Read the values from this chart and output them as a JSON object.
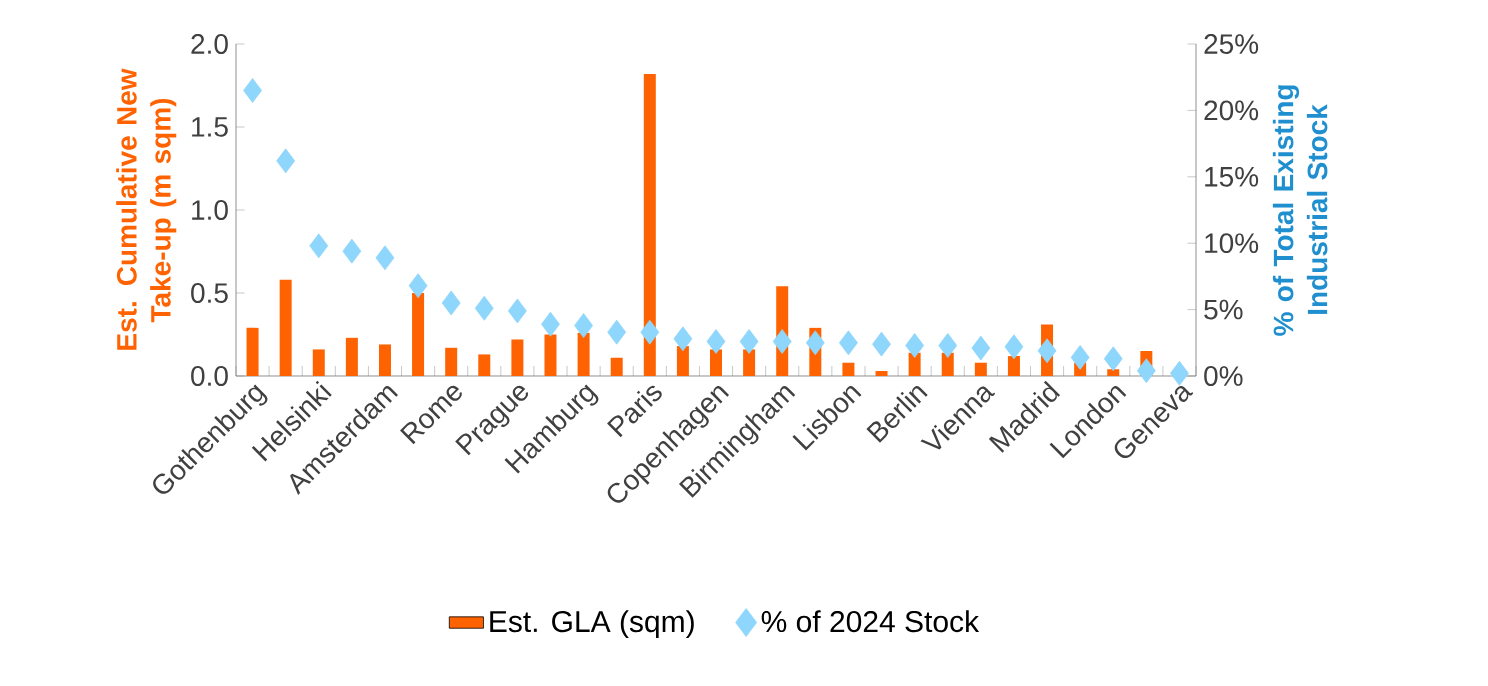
{
  "chart_data": {
    "type": "bar",
    "categories": [
      "Gothenburg",
      null,
      "Helsinki",
      null,
      "Amsterdam",
      null,
      "Rome",
      null,
      "Prague",
      null,
      "Hamburg",
      null,
      "Paris",
      null,
      "Copenhagen",
      null,
      "Birmingham",
      null,
      "Lisbon",
      null,
      "Berlin",
      null,
      "Vienna",
      null,
      "Madrid",
      null,
      "London",
      null,
      "Geneva"
    ],
    "series": [
      {
        "name": "Est. GLA (sqm)",
        "color": "#ff6200",
        "values": [
          0.29,
          0.58,
          0.16,
          0.23,
          0.19,
          0.5,
          0.17,
          0.13,
          0.22,
          0.25,
          0.26,
          0.11,
          1.82,
          0.18,
          0.16,
          0.16,
          0.54,
          0.29,
          0.08,
          0.03,
          0.14,
          0.14,
          0.08,
          0.12,
          0.31,
          0.08,
          0.04,
          0.15,
          0
        ]
      },
      {
        "name": "% of 2024 Stock",
        "type": "scatter",
        "axis": "y2",
        "marker": "diamond",
        "color": "#8ed6fb",
        "values": [
          21.5,
          16.2,
          9.8,
          9.4,
          8.9,
          6.8,
          5.5,
          5.1,
          4.9,
          3.9,
          3.8,
          3.3,
          3.3,
          2.8,
          2.6,
          2.6,
          2.6,
          2.5,
          2.5,
          2.4,
          2.3,
          2.3,
          2.1,
          2.2,
          1.9,
          1.4,
          1.3,
          0.4,
          0.2
        ]
      }
    ],
    "ylabel": "Est. Cumulative New Take-up (m sqm)",
    "y2label": "% of Total Existing Industrial Stock",
    "ylim": [
      0,
      2
    ],
    "yticks": [
      {
        "value": 0,
        "label": "0.0"
      },
      {
        "value": 0.5,
        "label": "0.5"
      },
      {
        "value": 1,
        "label": "1.0"
      },
      {
        "value": 1.5,
        "label": "1.5"
      },
      {
        "value": 2,
        "label": "2.0"
      }
    ],
    "y2lim": [
      0,
      25
    ],
    "y2ticks": [
      {
        "value": 0,
        "label": "0%"
      },
      {
        "value": 5,
        "label": "5%"
      },
      {
        "value": 10,
        "label": "10%"
      },
      {
        "value": 15,
        "label": "15%"
      },
      {
        "value": 20,
        "label": "20%"
      },
      {
        "value": 25,
        "label": "25%"
      }
    ],
    "legend": "bottom"
  }
}
